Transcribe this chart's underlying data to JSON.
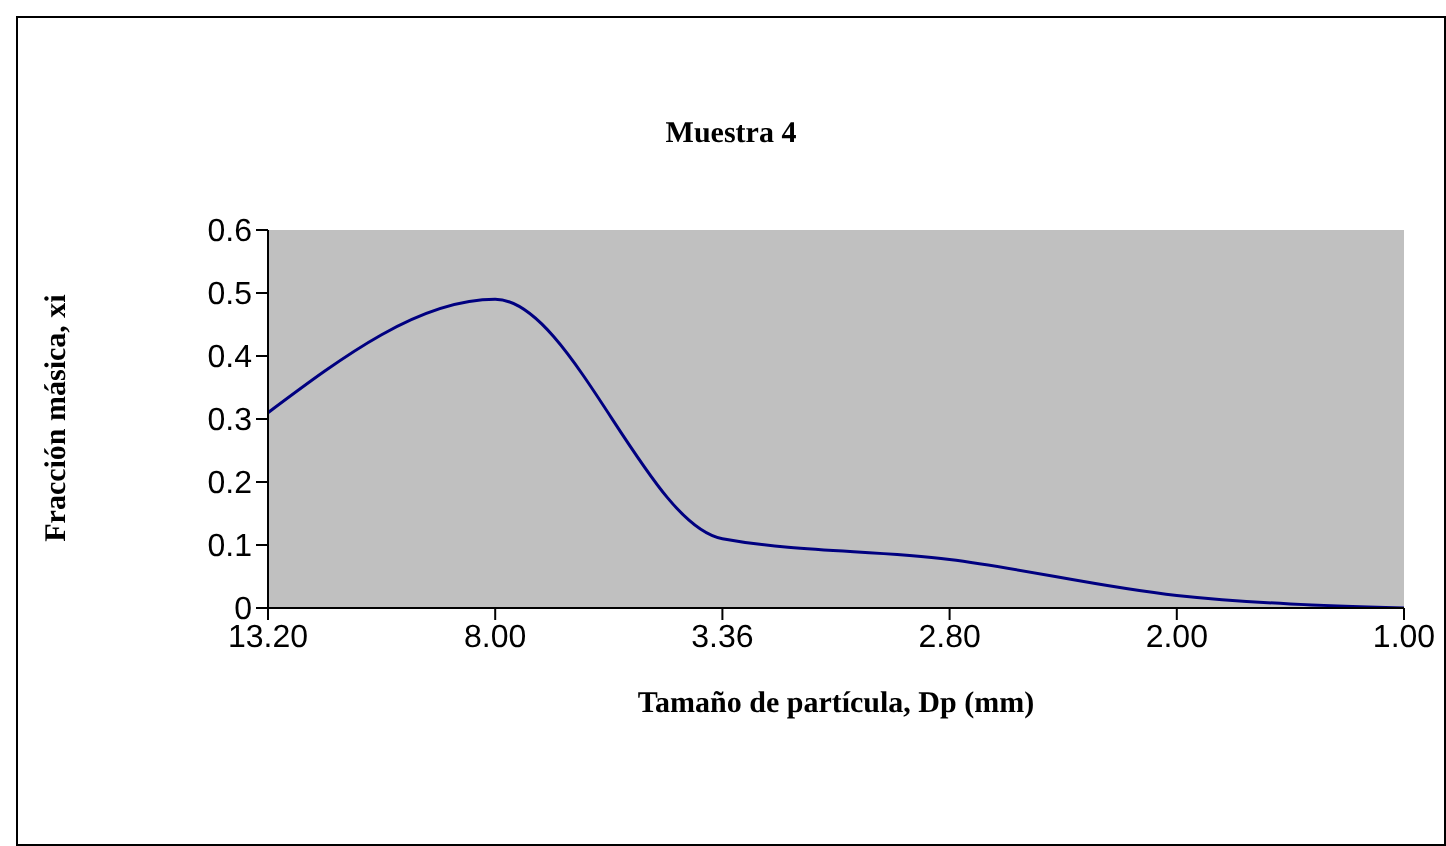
{
  "chart_data": {
    "type": "line",
    "title": "Muestra 4",
    "xlabel": "Tamaño de partícula, Dp (mm)",
    "ylabel": "Fracción másica, xi",
    "categories": [
      "13.20",
      "8.00",
      "3.36",
      "2.80",
      "2.00",
      "1.00"
    ],
    "series": [
      {
        "color": "#000080",
        "values": [
          0.31,
          0.49,
          0.11,
          0.077,
          0.02,
          0
        ]
      }
    ],
    "ylim": [
      0,
      0.6
    ],
    "yticks": [
      0,
      0.1,
      0.2,
      0.3,
      0.4,
      0.5,
      0.6
    ],
    "grid": false,
    "legend": false,
    "marker": "none",
    "line_style": "solid"
  }
}
